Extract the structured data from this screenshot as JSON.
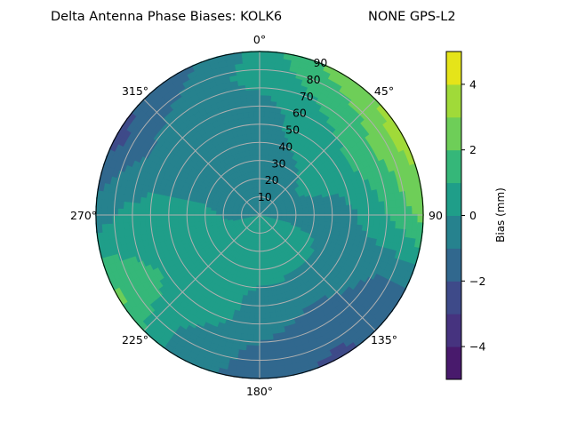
{
  "chart_data": {
    "type": "heatmap",
    "projection": "polar",
    "title": "Delta Antenna Phase Biases: KOLK6",
    "title_right": "NONE GPS-L2",
    "theta_direction": "clockwise",
    "theta_zero": "north",
    "theta_tick_labels": [
      "0°",
      "45°",
      "90",
      "135°",
      "180°",
      "225°",
      "270°",
      "315°"
    ],
    "theta_ticks": [
      0,
      45,
      90,
      135,
      180,
      225,
      270,
      315
    ],
    "r_ticks": [
      10,
      20,
      30,
      40,
      50,
      60,
      70,
      80,
      90
    ],
    "r_tick_labels": [
      "10",
      "20",
      "30",
      "40",
      "50",
      "60",
      "70",
      "80",
      "90"
    ],
    "rlim": [
      0,
      90
    ],
    "grid": true,
    "azimuth": [
      0,
      30,
      60,
      90,
      120,
      150,
      180,
      210,
      240,
      270,
      300,
      330
    ],
    "radius": [
      0,
      15,
      30,
      45,
      60,
      75,
      90
    ],
    "values": [
      [
        0,
        -0.5,
        -0.5,
        -0.5,
        -0.5,
        0.5,
        0.3
      ],
      [
        0,
        -0.5,
        -0.3,
        0.3,
        0.7,
        1.3,
        2.5
      ],
      [
        0,
        -0.3,
        0.3,
        0.6,
        1.2,
        2.3,
        3.6
      ],
      [
        0,
        -0.3,
        -0.5,
        -0.5,
        0.4,
        1.3,
        2.5
      ],
      [
        0,
        0.3,
        0.2,
        -0.5,
        -0.7,
        -1.2,
        -1.3
      ],
      [
        0,
        0.4,
        0.3,
        -0.4,
        -1.2,
        -1.5,
        -2.3
      ],
      [
        0,
        0.5,
        0.5,
        -0.3,
        -0.6,
        -1.2,
        -1.5
      ],
      [
        0,
        0.5,
        0.6,
        0.6,
        0.5,
        -0.3,
        -0.5
      ],
      [
        0,
        0.5,
        0.6,
        0.7,
        0.8,
        1.6,
        2.3
      ],
      [
        0,
        -0.3,
        0.3,
        0.4,
        0.4,
        0.2,
        -0.5
      ],
      [
        0,
        -0.5,
        -0.5,
        -0.5,
        -0.6,
        -1.3,
        -2.5
      ],
      [
        0,
        -0.5,
        -0.5,
        -0.5,
        -0.5,
        -0.8,
        -1.3
      ]
    ],
    "levels": [
      -5,
      -4,
      -3,
      -2,
      -1,
      0,
      1,
      2,
      3,
      4,
      5
    ],
    "colormap": "viridis",
    "level_colors": [
      "#481a6c",
      "#46337f",
      "#3e4a89",
      "#31688e",
      "#26828e",
      "#1f9e89",
      "#35b779",
      "#6ece58",
      "#a0da39",
      "#e5e419"
    ],
    "colorbar": {
      "label": "Bias (mm)",
      "range": [
        -5,
        5
      ],
      "ticks": [
        4,
        2,
        0,
        -2,
        -4
      ],
      "tick_labels": [
        "4",
        "2",
        "0",
        "−2",
        "−4"
      ]
    }
  }
}
